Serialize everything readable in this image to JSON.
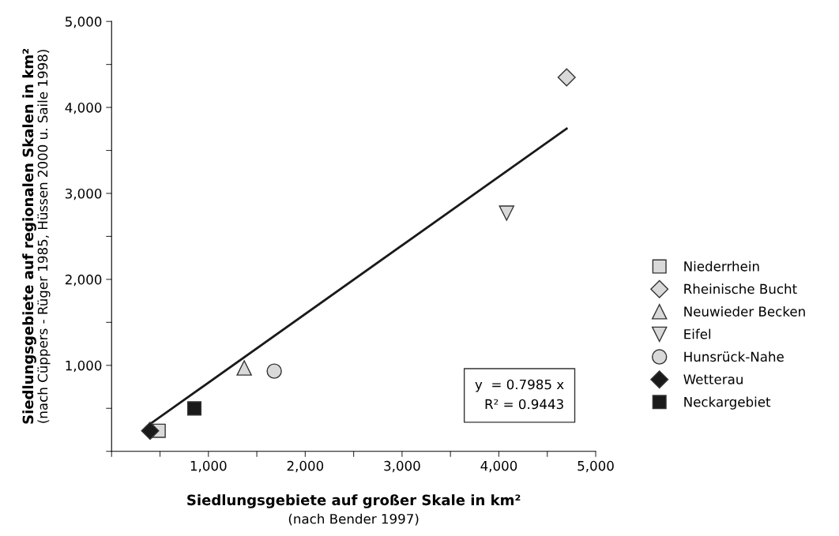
{
  "chart_data": {
    "type": "scatter",
    "xlabel": "Siedlungsgebiete auf großer Skale in km²\n(nach Bender 1997)",
    "ylabel": "Siedlungsgebiete auf regionalen Skalen in km²\n(nach Cüppers - Rüger 1985, Hüssen 2000 u. Saile 1998)",
    "xlim": [
      0,
      5000
    ],
    "ylim": [
      0,
      5000
    ],
    "xticks": [
      {
        "value": 0,
        "label": null
      },
      {
        "value": 500,
        "label": null
      },
      {
        "value": 1000,
        "label": "1,000"
      },
      {
        "value": 1500,
        "label": null
      },
      {
        "value": 2000,
        "label": "2,000"
      },
      {
        "value": 2500,
        "label": null
      },
      {
        "value": 3000,
        "label": "3,000"
      },
      {
        "value": 3500,
        "label": null
      },
      {
        "value": 4000,
        "label": "4,000"
      },
      {
        "value": 4500,
        "label": null
      },
      {
        "value": 5000,
        "label": "5,000"
      }
    ],
    "yticks": [
      {
        "value": 0,
        "label": null
      },
      {
        "value": 500,
        "label": null
      },
      {
        "value": 1000,
        "label": "1,000"
      },
      {
        "value": 1500,
        "label": null
      },
      {
        "value": 2000,
        "label": "2,000"
      },
      {
        "value": 2500,
        "label": null
      },
      {
        "value": 3000,
        "label": "3,000"
      },
      {
        "value": 3500,
        "label": null
      },
      {
        "value": 4000,
        "label": "4,000"
      },
      {
        "value": 4500,
        "label": null
      },
      {
        "value": 5000,
        "label": "5,000"
      }
    ],
    "grid": false,
    "legend": "right",
    "annotations": [
      "y  = 0.7985 x\nR² = 0.9443"
    ],
    "series": [
      {
        "type": "line",
        "color": "#1a1a1a",
        "x": [
          418,
          4700
        ],
        "values": [
          334,
          3753
        ],
        "marker": "none",
        "line_style": "solid"
      },
      {
        "name": "Niederrhein",
        "color": "#d9d9d9",
        "marker": "square",
        "x": [
          486
        ],
        "values": [
          239
        ]
      },
      {
        "name": "Rheinische Bucht",
        "color": "#d9d9d9",
        "marker": "diamond",
        "x": [
          4700
        ],
        "values": [
          4350
        ]
      },
      {
        "name": "Neuwieder Becken",
        "color": "#d9d9d9",
        "marker": "triangle",
        "x": [
          1370
        ],
        "values": [
          970
        ]
      },
      {
        "name": "Eifel",
        "color": "#d9d9d9",
        "marker": "triangle_down",
        "x": [
          4080
        ],
        "values": [
          2770
        ]
      },
      {
        "name": "Hunsrück-Nahe",
        "color": "#d9d9d9",
        "marker": "circle",
        "x": [
          1680
        ],
        "values": [
          933
        ]
      },
      {
        "name": "Wetterau",
        "color": "#1a1a1a",
        "marker": "diamond",
        "x": [
          398
        ],
        "values": [
          239
        ]
      },
      {
        "name": "Neckargebiet",
        "color": "#1a1a1a",
        "marker": "square",
        "x": [
          855
        ],
        "values": [
          499
        ]
      }
    ]
  }
}
